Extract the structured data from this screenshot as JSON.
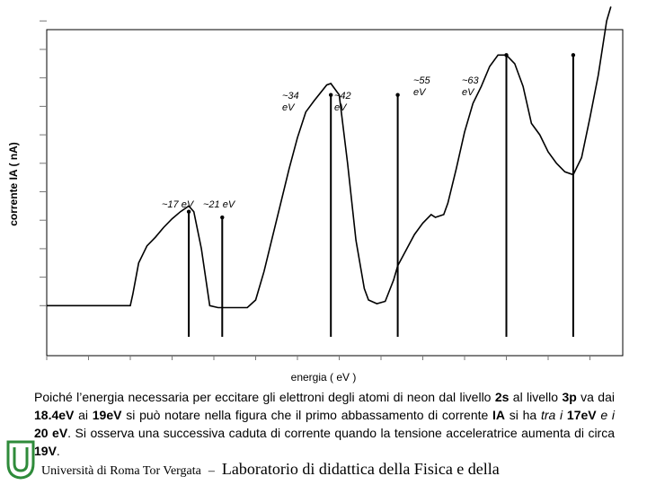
{
  "chart_data": {
    "type": "line",
    "title": "",
    "xlabel": "energia ( eV )",
    "ylabel": "corrente IA ( nA)",
    "xlim": [
      0,
      65
    ],
    "ylim": [
      0,
      11
    ],
    "grid": false,
    "series": [
      {
        "values_xy": [
          [
            0,
            1
          ],
          [
            10,
            1
          ],
          [
            10.3,
            1.4
          ],
          [
            11,
            2.5
          ],
          [
            12,
            3.1
          ],
          [
            13,
            3.4
          ],
          [
            14,
            3.75
          ],
          [
            15,
            4.05
          ],
          [
            16,
            4.3
          ],
          [
            17,
            4.5
          ],
          [
            17.6,
            4.3
          ],
          [
            18.5,
            3
          ],
          [
            19.5,
            1
          ],
          [
            20.5,
            0.93
          ],
          [
            24,
            0.93
          ],
          [
            25,
            1.2
          ],
          [
            26,
            2.2
          ],
          [
            27,
            3.4
          ],
          [
            28,
            4.6
          ],
          [
            29,
            5.8
          ],
          [
            30,
            6.9
          ],
          [
            31,
            7.8
          ],
          [
            32,
            8.2
          ],
          [
            33.5,
            8.75
          ],
          [
            34,
            8.8
          ],
          [
            35,
            8.4
          ],
          [
            36,
            6
          ],
          [
            37,
            3.3
          ],
          [
            38,
            1.6
          ],
          [
            38.5,
            1.2
          ],
          [
            39.5,
            1.07
          ],
          [
            40.5,
            1.15
          ],
          [
            41.5,
            1.9
          ],
          [
            42,
            2.4
          ],
          [
            43,
            2.95
          ],
          [
            44,
            3.5
          ],
          [
            45,
            3.9
          ],
          [
            46,
            4.2
          ],
          [
            46.5,
            4.1
          ],
          [
            47.5,
            4.2
          ],
          [
            48,
            4.6
          ],
          [
            49,
            5.8
          ],
          [
            50,
            7.1
          ],
          [
            51,
            8.1
          ],
          [
            52,
            8.7
          ],
          [
            53,
            9.4
          ],
          [
            54,
            9.8
          ],
          [
            55,
            9.8
          ],
          [
            56,
            9.5
          ],
          [
            57,
            8.7
          ],
          [
            58,
            7.4
          ],
          [
            59,
            7
          ],
          [
            60,
            6.4
          ],
          [
            61,
            6
          ],
          [
            62,
            5.7
          ],
          [
            63,
            5.6
          ],
          [
            64,
            6.2
          ],
          [
            65,
            7.6
          ],
          [
            66,
            9.1
          ],
          [
            67,
            11
          ],
          [
            67.5,
            11.5
          ]
        ]
      }
    ],
    "annotations": [
      {
        "label": "~17 eV",
        "x": 17
      },
      {
        "label": "~21 eV",
        "x": 21
      },
      {
        "label": "~34 eV",
        "x": 34
      },
      {
        "label": "~42 eV",
        "x": 42
      },
      {
        "label": "~55 eV",
        "x": 55
      },
      {
        "label": "~63 eV",
        "x": 63
      }
    ]
  },
  "caption": {
    "part1": "Poiché l’energia necessaria per eccitare gli elettroni degli atomi di neon dal livello ",
    "b1": "2s",
    "part2": " al livello ",
    "b2": "3p",
    "part3": " va dai ",
    "b3": "18.4eV",
    "part4": " ai ",
    "b4": "19eV",
    "part5": "  si può notare nella figura che il primo abbassamento di corrente ",
    "b5": "IA",
    "part6": " si ha ",
    "i1": "tra i ",
    "b6": "17eV",
    "i2": " e i ",
    "b7": "20 eV",
    "part7": ". Si osserva una successiva caduta di corrente quando la tensione acceleratrice aumenta di circa ",
    "b8": "19V",
    "part8": "."
  },
  "footer": {
    "university": "Università di Roma Tor Vergata",
    "separator": "–",
    "lab": "Laboratorio di didattica della Fisica e della"
  },
  "colors": {
    "line": "#000000",
    "logo": "#2e8b3a"
  }
}
